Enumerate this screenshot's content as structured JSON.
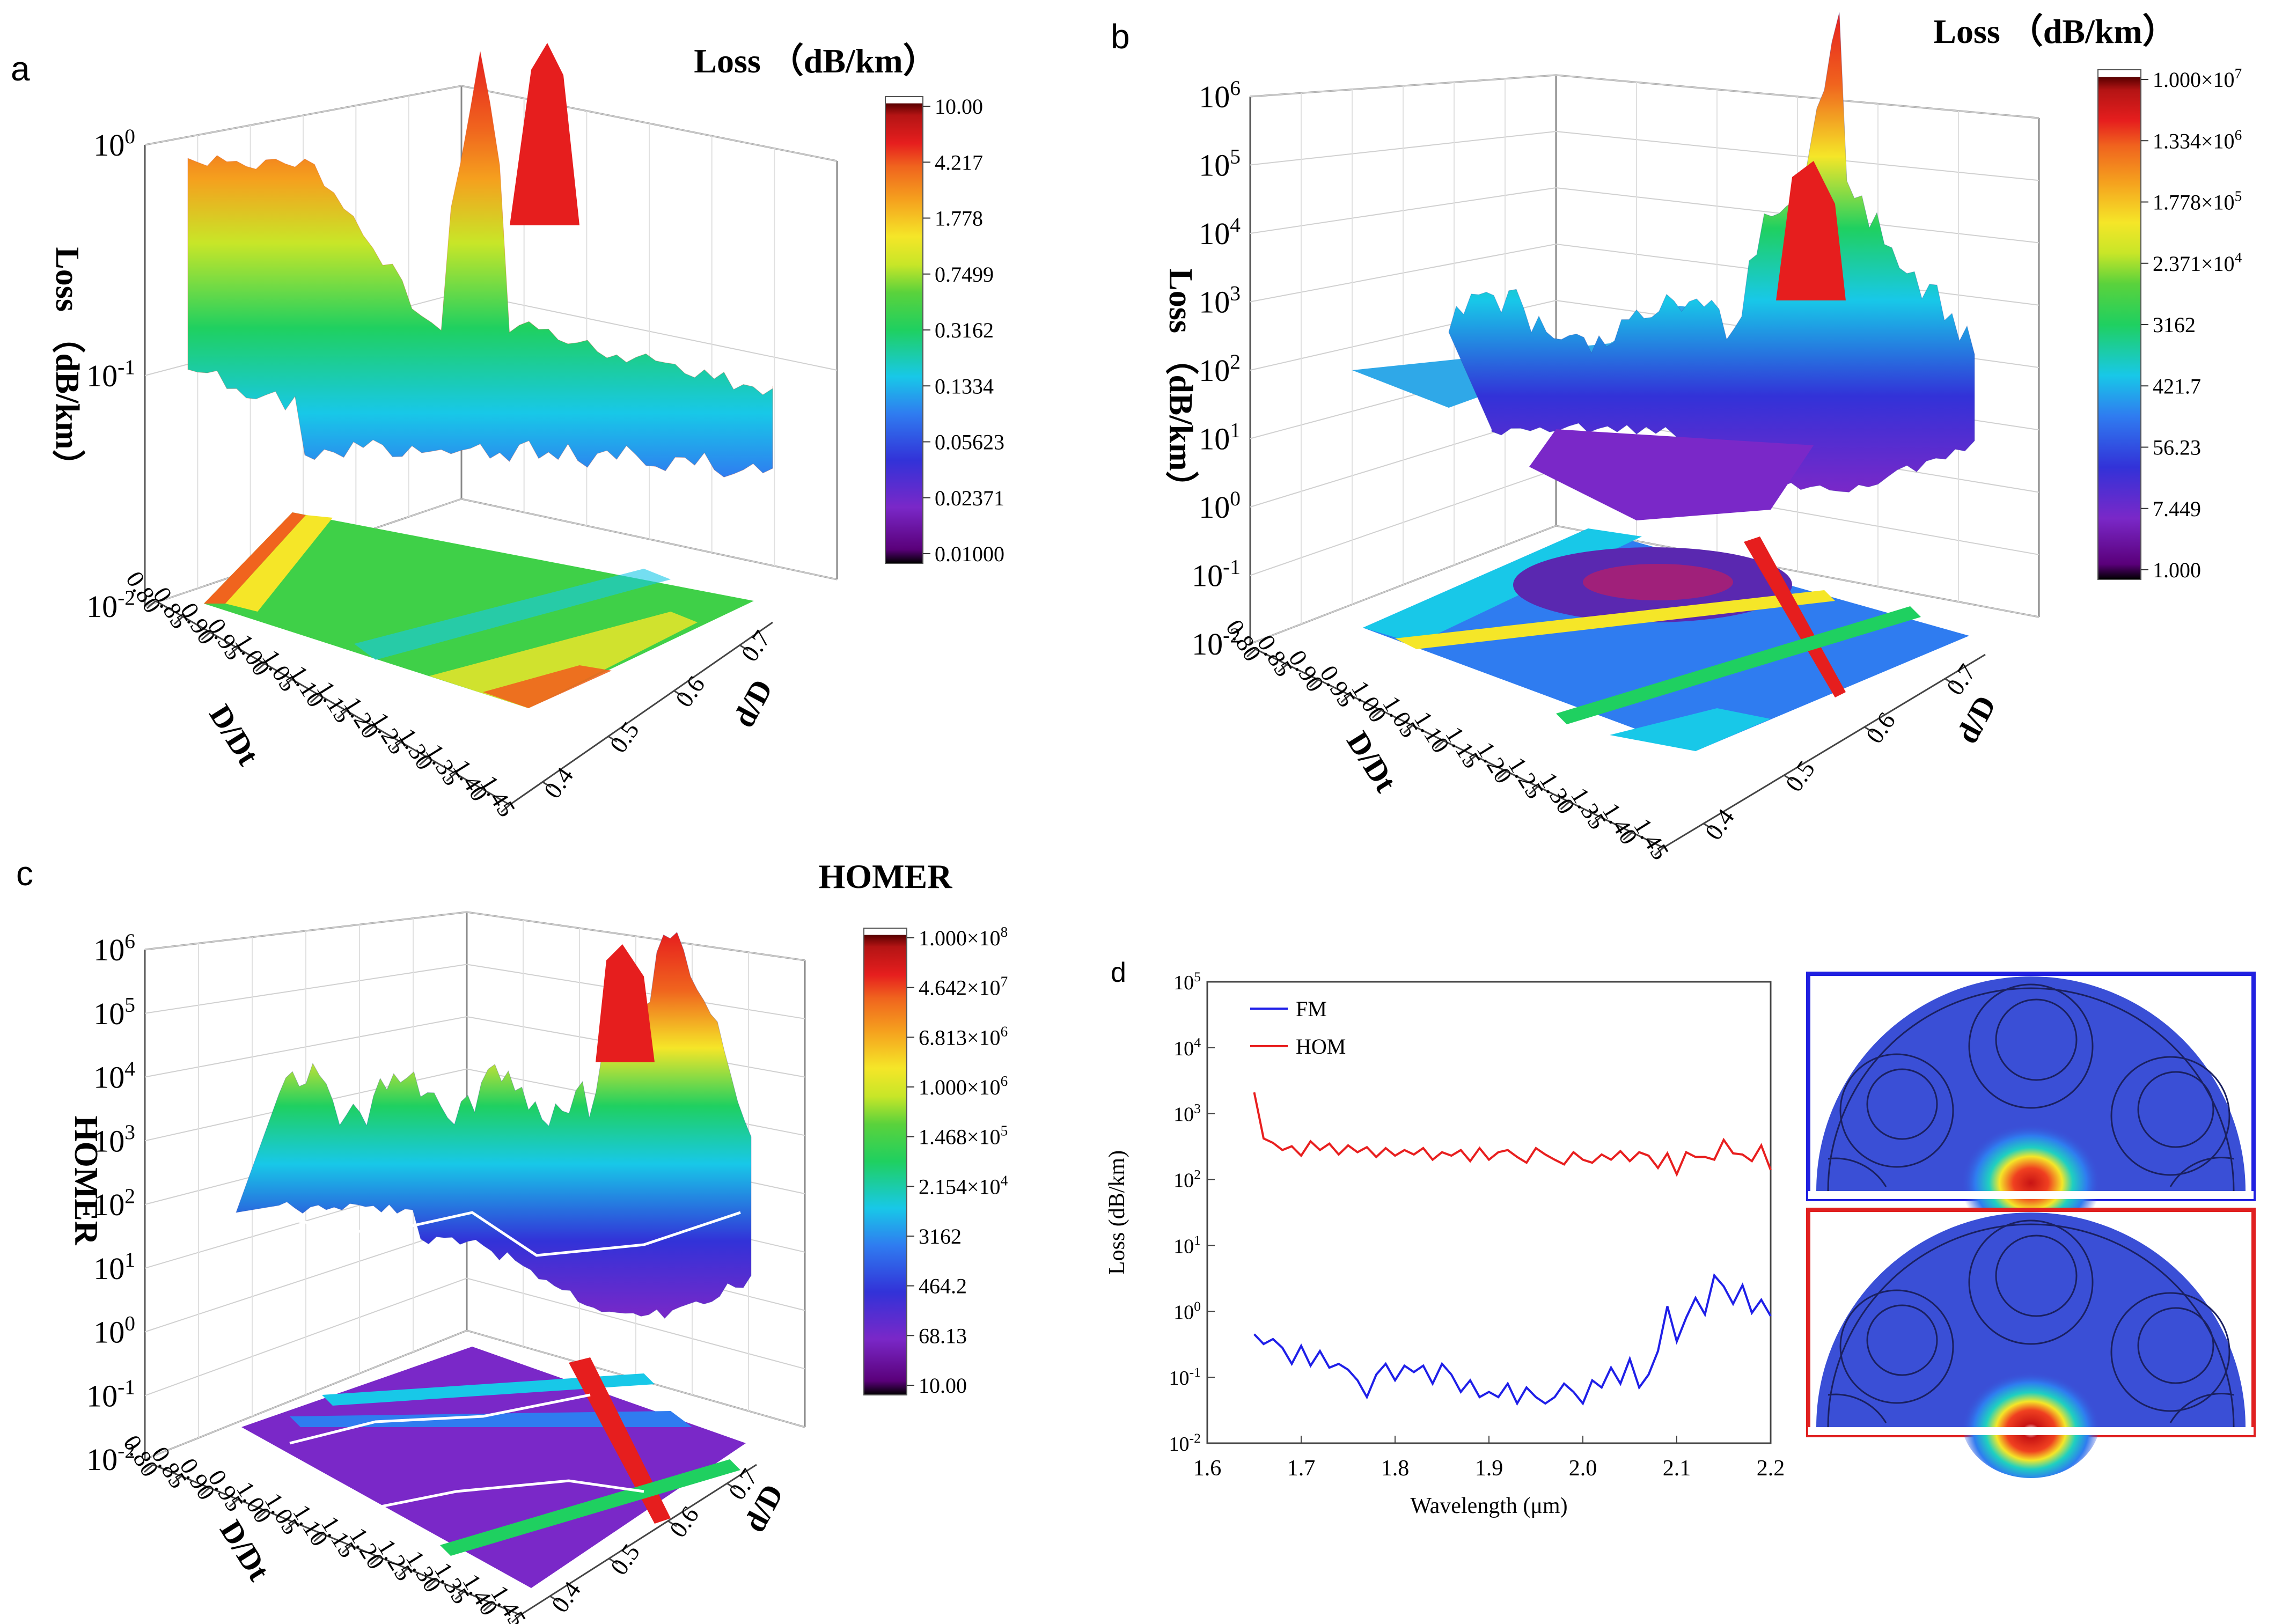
{
  "chart_data": [
    {
      "panel": "a",
      "type": "surface3d",
      "title": "Loss （dB/km）",
      "zlabel": "Loss （dB/km）",
      "xlabel": "D/Dt",
      "ylabel": "d/D",
      "z_scale": "log",
      "z_ticks": [
        "10-2",
        "10-1",
        "100"
      ],
      "x_ticks": [
        "0.80",
        "0.85",
        "0.90",
        "0.95",
        "1.00",
        "1.05",
        "1.10",
        "1.15",
        "1.20",
        "1.25",
        "1.30",
        "1.35",
        "1.40",
        "1.45"
      ],
      "y_ticks": [
        "0.4",
        "0.5",
        "0.6",
        "0.7"
      ],
      "colorbar": [
        "10.00",
        "4.217",
        "1.778",
        "0.7499",
        "0.3162",
        "0.1334",
        "0.05623",
        "0.02371",
        "0.01000"
      ]
    },
    {
      "panel": "b",
      "type": "surface3d",
      "title": "Loss （dB/km）",
      "zlabel": "Loss （dB/km）",
      "xlabel": "D/Dt",
      "ylabel": "d/D",
      "z_scale": "log",
      "z_ticks": [
        "10-2",
        "10-1",
        "100",
        "101",
        "102",
        "103",
        "104",
        "105",
        "106"
      ],
      "x_ticks": [
        "0.80",
        "0.85",
        "0.90",
        "0.95",
        "1.00",
        "1.05",
        "1.10",
        "1.15",
        "1.20",
        "1.25",
        "1.30",
        "1.35",
        "1.40",
        "1.45"
      ],
      "y_ticks": [
        "0.4",
        "0.5",
        "0.6",
        "0.7"
      ],
      "colorbar": [
        "1.000×107",
        "1.334×106",
        "1.778×105",
        "2.371×104",
        "3162",
        "421.7",
        "56.23",
        "7.449",
        "1.000"
      ]
    },
    {
      "panel": "c",
      "type": "surface3d",
      "title": "HOMER",
      "zlabel": "HOMER",
      "xlabel": "D/Dt",
      "ylabel": "d/D",
      "z_scale": "log",
      "z_ticks": [
        "10-2",
        "10-1",
        "100",
        "101",
        "102",
        "103",
        "104",
        "105",
        "106"
      ],
      "x_ticks": [
        "0.80",
        "0.85",
        "0.90",
        "0.95",
        "1.00",
        "1.05",
        "1.10",
        "1.15",
        "1.20",
        "1.25",
        "1.30",
        "1.35",
        "1.40",
        "1.45"
      ],
      "y_ticks": [
        "0.4",
        "0.5",
        "0.6",
        "0.7"
      ],
      "colorbar": [
        "1.000×108",
        "4.642×107",
        "6.813×106",
        "1.000×106",
        "1.468×105",
        "2.154×104",
        "3162",
        "464.2",
        "68.13",
        "10.00"
      ]
    },
    {
      "panel": "d",
      "type": "line",
      "xlabel": "Wavelength (μm)",
      "ylabel": "Loss (dB/km)",
      "y_scale": "log",
      "ylim": [
        0.01,
        100000
      ],
      "xlim": [
        1.6,
        2.2
      ],
      "x_ticks": [
        "1.6",
        "1.7",
        "1.8",
        "1.9",
        "2.0",
        "2.1",
        "2.2"
      ],
      "series": [
        {
          "name": "FM",
          "color": "#1f1fe8",
          "x": [
            1.65,
            1.66,
            1.67,
            1.68,
            1.69,
            1.7,
            1.71,
            1.72,
            1.73,
            1.74,
            1.75,
            1.76,
            1.77,
            1.78,
            1.79,
            1.8,
            1.81,
            1.82,
            1.83,
            1.84,
            1.85,
            1.86,
            1.87,
            1.88,
            1.89,
            1.9,
            1.91,
            1.92,
            1.93,
            1.94,
            1.95,
            1.96,
            1.97,
            1.98,
            1.99,
            2.0,
            2.01,
            2.02,
            2.03,
            2.04,
            2.05,
            2.06,
            2.07,
            2.08,
            2.09,
            2.1,
            2.11,
            2.12,
            2.13,
            2.14,
            2.15,
            2.16,
            2.17,
            2.18,
            2.19,
            2.2
          ],
          "y": [
            0.45,
            0.32,
            0.38,
            0.28,
            0.16,
            0.3,
            0.15,
            0.25,
            0.14,
            0.16,
            0.13,
            0.09,
            0.05,
            0.11,
            0.16,
            0.09,
            0.15,
            0.12,
            0.15,
            0.08,
            0.16,
            0.11,
            0.06,
            0.09,
            0.05,
            0.06,
            0.05,
            0.08,
            0.04,
            0.07,
            0.05,
            0.04,
            0.05,
            0.08,
            0.06,
            0.04,
            0.09,
            0.07,
            0.14,
            0.08,
            0.19,
            0.07,
            0.11,
            0.25,
            1.2,
            0.35,
            0.8,
            1.6,
            0.9,
            3.5,
            2.4,
            1.3,
            2.5,
            0.95,
            1.5,
            0.85
          ]
        },
        {
          "name": "HOM",
          "color": "#e81f1f",
          "x": [
            1.65,
            1.66,
            1.67,
            1.68,
            1.69,
            1.7,
            1.71,
            1.72,
            1.73,
            1.74,
            1.75,
            1.76,
            1.77,
            1.78,
            1.79,
            1.8,
            1.81,
            1.82,
            1.83,
            1.84,
            1.85,
            1.86,
            1.87,
            1.88,
            1.89,
            1.9,
            1.91,
            1.92,
            1.93,
            1.94,
            1.95,
            1.96,
            1.97,
            1.98,
            1.99,
            2.0,
            2.01,
            2.02,
            2.03,
            2.04,
            2.05,
            2.06,
            2.07,
            2.08,
            2.09,
            2.1,
            2.11,
            2.12,
            2.13,
            2.14,
            2.15,
            2.16,
            2.17,
            2.18,
            2.19,
            2.2
          ],
          "y": [
            2100,
            420,
            360,
            280,
            320,
            230,
            380,
            280,
            350,
            240,
            330,
            260,
            310,
            220,
            300,
            230,
            280,
            240,
            300,
            200,
            260,
            230,
            280,
            190,
            300,
            200,
            260,
            280,
            220,
            180,
            300,
            240,
            200,
            170,
            260,
            200,
            180,
            240,
            200,
            270,
            190,
            260,
            230,
            150,
            250,
            120,
            260,
            220,
            220,
            200,
            400,
            250,
            240,
            190,
            330,
            140
          ]
        }
      ]
    }
  ],
  "panels": {
    "a": {
      "label": "a"
    },
    "b": {
      "label": "b"
    },
    "c": {
      "label": "c"
    },
    "d": {
      "label": "d"
    }
  },
  "colors": {
    "colormap": [
      "#000000",
      "#5a007a",
      "#7a28c8",
      "#3232d8",
      "#2f7cf0",
      "#18c8e8",
      "#1fd060",
      "#5ad23c",
      "#c8e628",
      "#f5e628",
      "#f5a01e",
      "#f0641e",
      "#e61e1e",
      "#b41414",
      "#5a0000",
      "#ffffff"
    ],
    "mode_bg": "#3a4fd6",
    "fm_border": "#2020e0",
    "hom_border": "#e02020"
  }
}
